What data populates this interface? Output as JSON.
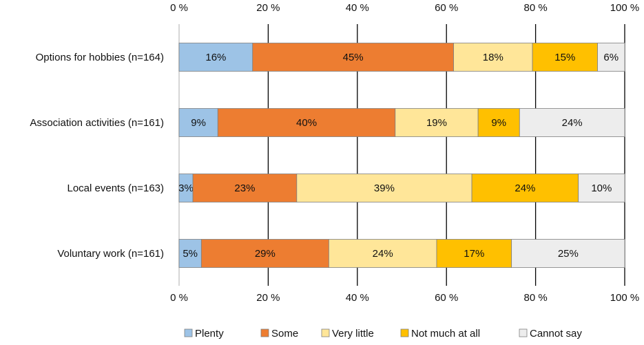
{
  "chart_data": {
    "type": "bar",
    "orientation": "horizontal-stacked-100",
    "title": "",
    "xlabel": "",
    "ylabel": "",
    "xlim": [
      0,
      100
    ],
    "grid": true,
    "legend_position": "bottom",
    "x_tick_labels": [
      "0 %",
      "20 %",
      "40 %",
      "60 %",
      "80 %",
      "100 %"
    ],
    "x_tick_values": [
      0,
      20,
      40,
      60,
      80,
      100
    ],
    "categories": [
      "Options for hobbies (n=164)",
      "Association activities (n=161)",
      "Local events (n=163)",
      "Voluntary work (n=161)"
    ],
    "series": [
      {
        "name": "Plenty",
        "color": "#9dc3e6",
        "values": [
          16.5,
          8.7,
          3.1,
          5.0
        ],
        "labels": [
          "16%",
          "9%",
          "3%",
          "5%"
        ]
      },
      {
        "name": "Some",
        "color": "#ed7d31",
        "values": [
          45.1,
          39.8,
          23.3,
          28.6
        ],
        "labels": [
          "45%",
          "40%",
          "23%",
          "29%"
        ]
      },
      {
        "name": "Very little",
        "color": "#ffe699",
        "values": [
          17.7,
          18.6,
          39.3,
          24.2
        ],
        "labels": [
          "18%",
          "19%",
          "39%",
          "24%"
        ]
      },
      {
        "name": "Not much at all",
        "color": "#ffc000",
        "values": [
          14.6,
          9.3,
          23.9,
          16.8
        ],
        "labels": [
          "15%",
          "9%",
          "24%",
          "17%"
        ]
      },
      {
        "name": "Cannot say",
        "color": "#ededed",
        "values": [
          6.1,
          23.6,
          10.4,
          25.4
        ],
        "labels": [
          "6%",
          "24%",
          "10%",
          "25%"
        ]
      }
    ]
  }
}
